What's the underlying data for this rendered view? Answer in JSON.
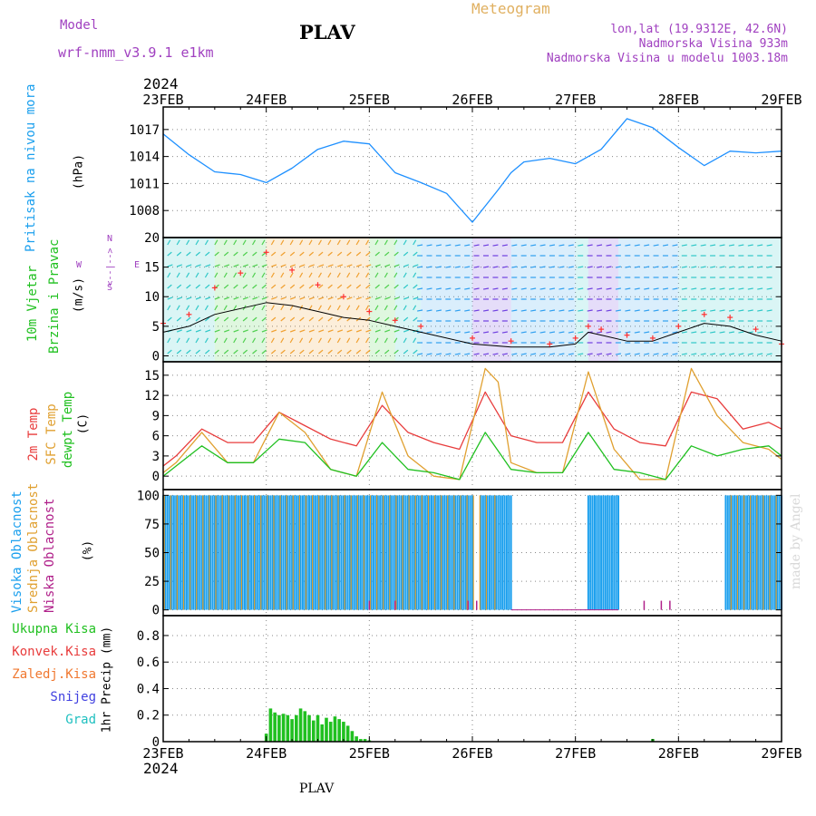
{
  "header": {
    "model_label": "Model",
    "model_name": "wrf-nmm_v3.9.1  e1km",
    "station": "PLAV",
    "meteogram_title": "Meteogram",
    "coords": "lon,lat (19.9312E, 42.6N)",
    "elevation": "Nadmorska Visina 933m",
    "model_elevation": "Nadmorska Visina u modelu 1003.18m",
    "year_top": "2024",
    "year_bottom": "2024",
    "footer_station": "PLAV",
    "watermark": "made by Angel"
  },
  "colors": {
    "pressure": "#1e90ff",
    "wind_speed": "#000000",
    "wind_gust": "#ff3030",
    "temp2m": "#e83c3c",
    "sfc_temp": "#e0a030",
    "dewpt": "#20c020",
    "high_cloud": "#1ca0ee",
    "mid_cloud": "#e0a030",
    "low_cloud": "#b0208a",
    "precip": "#20c020",
    "title_purple": "#a040c0",
    "meteogram": "#e0b060"
  },
  "chart_data": [
    {
      "type": "line",
      "name": "pressure",
      "ylabel": "Pritisak na nivou mora",
      "unit": "(hPa)",
      "yticks": [
        1008,
        1011,
        1014,
        1017
      ],
      "ylim": [
        1005,
        1019.5
      ],
      "x_dates": [
        "23FEB",
        "24FEB",
        "25FEB",
        "26FEB",
        "27FEB",
        "28FEB",
        "29FEB"
      ],
      "x_hours": [
        0,
        6,
        12,
        18,
        24,
        30,
        36,
        42,
        48,
        54,
        60,
        66,
        72,
        78,
        81,
        84,
        90,
        96,
        102,
        108,
        114,
        120,
        126,
        132,
        138,
        144
      ],
      "values": [
        1016.5,
        1014.2,
        1012.3,
        1012.0,
        1011.1,
        1012.7,
        1014.8,
        1015.7,
        1015.4,
        1012.2,
        1011.1,
        1009.9,
        1006.7,
        1010.3,
        1012.2,
        1013.4,
        1013.8,
        1013.2,
        1014.8,
        1018.2,
        1017.2,
        1015.0,
        1013.0,
        1014.6,
        1014.4,
        1014.6
      ]
    },
    {
      "type": "line",
      "name": "wind",
      "ylabel": "10m Vjetar",
      "ylabel2": "Brzina i Pravac",
      "unit": "(m/s)",
      "compass": {
        "w": "W",
        "e": "E",
        "n": "N",
        "s": "S",
        "arrow": "<--|-->"
      },
      "yticks": [
        0,
        5,
        10,
        15,
        20
      ],
      "ylim": [
        -1,
        20
      ],
      "x_hours": [
        0,
        6,
        12,
        18,
        24,
        30,
        36,
        42,
        48,
        54,
        60,
        72,
        81,
        90,
        96,
        99,
        102,
        108,
        114,
        120,
        126,
        132,
        138,
        144
      ],
      "speed": [
        4.0,
        5.0,
        7.0,
        8.0,
        9.0,
        8.5,
        7.5,
        6.5,
        6.0,
        5.0,
        4.0,
        2.0,
        1.5,
        1.5,
        2.0,
        4.0,
        3.5,
        2.5,
        2.5,
        4.0,
        5.5,
        5.0,
        3.5,
        2.5
      ],
      "gust_hours": [
        0,
        6,
        12,
        18,
        24,
        30,
        36,
        42,
        48,
        54,
        60,
        72,
        81,
        90,
        96,
        99,
        102,
        108,
        114,
        120,
        126,
        132,
        138,
        144
      ],
      "gust": [
        5.5,
        7.0,
        11.5,
        14.0,
        17.5,
        14.5,
        12.0,
        10.0,
        7.5,
        6.0,
        5.0,
        3.0,
        2.5,
        2.0,
        3.0,
        5.0,
        4.5,
        3.5,
        3.0,
        5.0,
        7.0,
        6.5,
        4.5,
        2.0
      ]
    },
    {
      "type": "line",
      "name": "temperature",
      "ylabel_series": [
        "2m Temp",
        "SFC Temp",
        "dewpt Temp"
      ],
      "unit": "(C)",
      "yticks": [
        0,
        3,
        6,
        9,
        12,
        15
      ],
      "ylim": [
        -2,
        17
      ],
      "series": [
        {
          "name": "2m Temp",
          "x_hours": [
            0,
            3,
            9,
            15,
            21,
            27,
            33,
            39,
            45,
            51,
            57,
            63,
            69,
            75,
            81,
            87,
            93,
            99,
            105,
            111,
            117,
            123,
            129,
            135,
            141,
            144
          ],
          "values": [
            1.5,
            3.0,
            7.0,
            5.0,
            5.0,
            9.5,
            7.5,
            5.5,
            4.5,
            10.5,
            6.5,
            5.0,
            4.0,
            12.5,
            6.0,
            5.0,
            5.0,
            12.5,
            7.0,
            5.0,
            4.5,
            12.5,
            11.5,
            7.0,
            8.0,
            7.0
          ]
        },
        {
          "name": "SFC Temp",
          "x_hours": [
            0,
            3,
            9,
            15,
            21,
            27,
            33,
            39,
            45,
            51,
            57,
            63,
            69,
            75,
            78,
            81,
            87,
            93,
            99,
            105,
            111,
            117,
            123,
            129,
            135,
            141,
            144
          ],
          "values": [
            0.5,
            2.0,
            6.5,
            2.0,
            2.0,
            9.5,
            6.5,
            1.0,
            0.0,
            12.5,
            3.0,
            0.0,
            -0.5,
            16.0,
            14.0,
            2.0,
            0.5,
            0.5,
            15.5,
            4.0,
            -0.5,
            -0.5,
            16.0,
            9.0,
            5.0,
            4.0,
            2.5
          ]
        },
        {
          "name": "dewpt Temp",
          "x_hours": [
            0,
            3,
            9,
            15,
            21,
            27,
            33,
            39,
            45,
            51,
            57,
            63,
            69,
            75,
            81,
            87,
            93,
            99,
            105,
            111,
            117,
            123,
            129,
            135,
            141,
            144
          ],
          "values": [
            0.0,
            1.5,
            4.5,
            2.0,
            2.0,
            5.5,
            5.0,
            1.0,
            0.0,
            5.0,
            1.0,
            0.5,
            -0.5,
            6.5,
            1.0,
            0.5,
            0.5,
            6.5,
            1.0,
            0.5,
            -0.5,
            4.5,
            3.0,
            4.0,
            4.5,
            3.0
          ]
        }
      ]
    },
    {
      "type": "bar",
      "name": "clouds",
      "ylabel_series": [
        "Visoka Oblacnost",
        "Srednja Oblacnost",
        "Niska Oblacnost"
      ],
      "unit": "(%)",
      "yticks": [
        0,
        25,
        50,
        75,
        100
      ],
      "ylim": [
        -5,
        105
      ],
      "high_cloud_ranges_hours": [
        [
          0,
          72
        ],
        [
          74,
          81
        ],
        [
          99,
          106
        ],
        [
          131,
          144
        ]
      ],
      "mid_cloud_ranges_hours": [
        [
          0,
          76
        ],
        [
          77,
          78
        ],
        [
          132,
          144
        ]
      ],
      "low_cloud_hours": [
        48,
        54,
        71,
        73,
        112,
        116,
        118
      ]
    },
    {
      "type": "bar",
      "name": "precipitation",
      "ylabel_series": [
        "Ukupna Kisa",
        "Konvek.Kisa",
        "Zaledj.Kisa",
        "Snijeg",
        "Grad"
      ],
      "unit": "1hr Precip (mm)",
      "yticks": [
        0,
        0.2,
        0.4,
        0.6,
        0.8
      ],
      "ylim": [
        0,
        0.95
      ],
      "x_hours": [
        24,
        25,
        26,
        27,
        28,
        29,
        30,
        31,
        32,
        33,
        34,
        35,
        36,
        37,
        38,
        39,
        40,
        41,
        42,
        43,
        44,
        45,
        46,
        47,
        48,
        114
      ],
      "values": [
        0.06,
        0.25,
        0.22,
        0.2,
        0.21,
        0.2,
        0.17,
        0.2,
        0.25,
        0.23,
        0.2,
        0.16,
        0.2,
        0.13,
        0.18,
        0.15,
        0.19,
        0.17,
        0.15,
        0.12,
        0.08,
        0.04,
        0.02,
        0.02,
        0.01,
        0.02
      ]
    }
  ]
}
